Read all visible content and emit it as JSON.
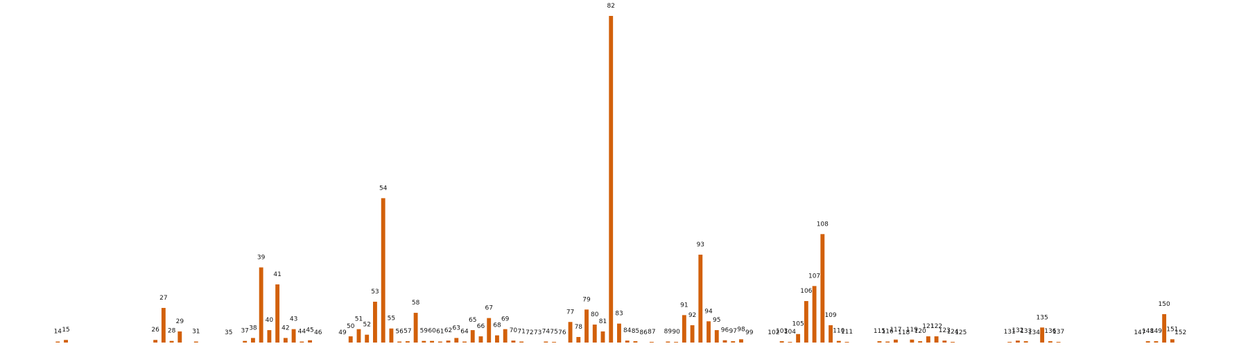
{
  "chart_data": {
    "type": "bar",
    "color": "#d2600a",
    "x": [
      14,
      15,
      26,
      27,
      28,
      29,
      31,
      35,
      37,
      38,
      39,
      40,
      41,
      42,
      43,
      44,
      45,
      46,
      49,
      50,
      51,
      52,
      53,
      54,
      55,
      56,
      57,
      58,
      59,
      60,
      61,
      62,
      63,
      64,
      65,
      66,
      67,
      68,
      69,
      70,
      71,
      72,
      73,
      74,
      75,
      76,
      77,
      78,
      79,
      80,
      81,
      82,
      83,
      84,
      85,
      86,
      87,
      89,
      90,
      91,
      92,
      93,
      94,
      95,
      96,
      97,
      98,
      99,
      102,
      103,
      104,
      105,
      106,
      107,
      108,
      109,
      110,
      111,
      115,
      116,
      117,
      118,
      119,
      120,
      121,
      122,
      123,
      124,
      125,
      131,
      132,
      133,
      134,
      135,
      136,
      137,
      147,
      148,
      149,
      150,
      151,
      152
    ],
    "values": [
      0.3,
      0.8,
      0.8,
      10.6,
      0.5,
      3.4,
      0.3,
      0,
      0.5,
      1.4,
      23,
      3.8,
      17.8,
      1.4,
      4.1,
      0.3,
      0.7,
      0,
      0,
      1.9,
      4.1,
      2.4,
      12.5,
      44.2,
      4.3,
      0.3,
      0.4,
      9.1,
      0.5,
      0.5,
      0.3,
      0.6,
      1.4,
      0.3,
      3.8,
      1.9,
      7.5,
      2.2,
      4.1,
      0.6,
      0.3,
      0,
      0,
      0.3,
      0.2,
      0,
      6.3,
      1.7,
      10.1,
      5.5,
      3.4,
      100,
      5.8,
      0.6,
      0.4,
      0,
      0.2,
      0.3,
      0.2,
      8.4,
      5.3,
      26.9,
      6.5,
      3.8,
      0.7,
      0.4,
      1,
      0,
      0,
      0.4,
      0.2,
      2.6,
      12.7,
      17.3,
      33.2,
      5.3,
      0.5,
      0.2,
      0.4,
      0.3,
      0.9,
      0,
      0.9,
      0.4,
      1.9,
      1.9,
      0.6,
      0.2,
      0,
      0.2,
      0.6,
      0.4,
      0,
      4.6,
      0.4,
      0.2,
      0,
      0.4,
      0.4,
      8.7,
      1,
      0
    ],
    "xlim": [
      6.9,
      160.3
    ],
    "ylim": [
      0,
      100
    ]
  }
}
